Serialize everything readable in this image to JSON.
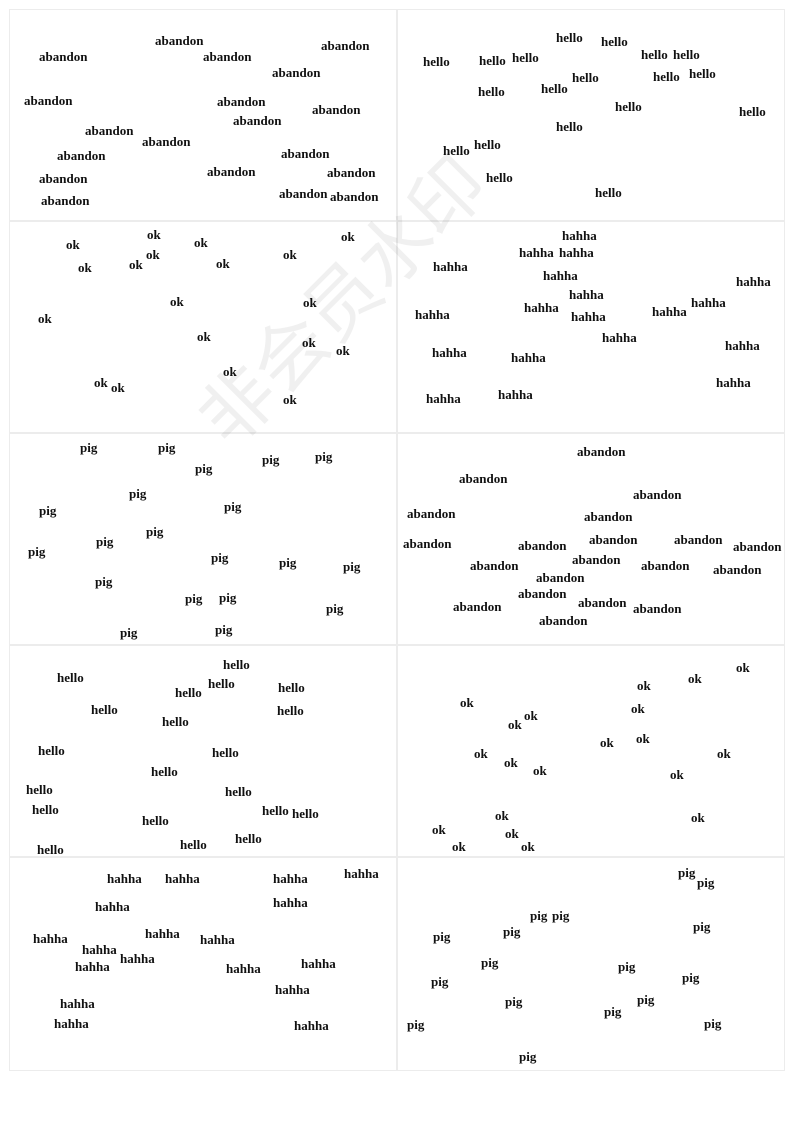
{
  "watermark": "非会员水印",
  "cells": [
    {
      "word": "abandon",
      "count": 19
    },
    {
      "word": "hello",
      "count": 19
    },
    {
      "word": "ok",
      "count": 19
    },
    {
      "word": "hahha",
      "count": 19
    },
    {
      "word": "pig",
      "count": 21
    },
    {
      "word": "abandon",
      "count": 20
    },
    {
      "word": "hello",
      "count": 20
    },
    {
      "word": "ok",
      "count": 20
    },
    {
      "word": "hahha",
      "count": 18
    },
    {
      "word": "pig",
      "count": 17
    }
  ]
}
